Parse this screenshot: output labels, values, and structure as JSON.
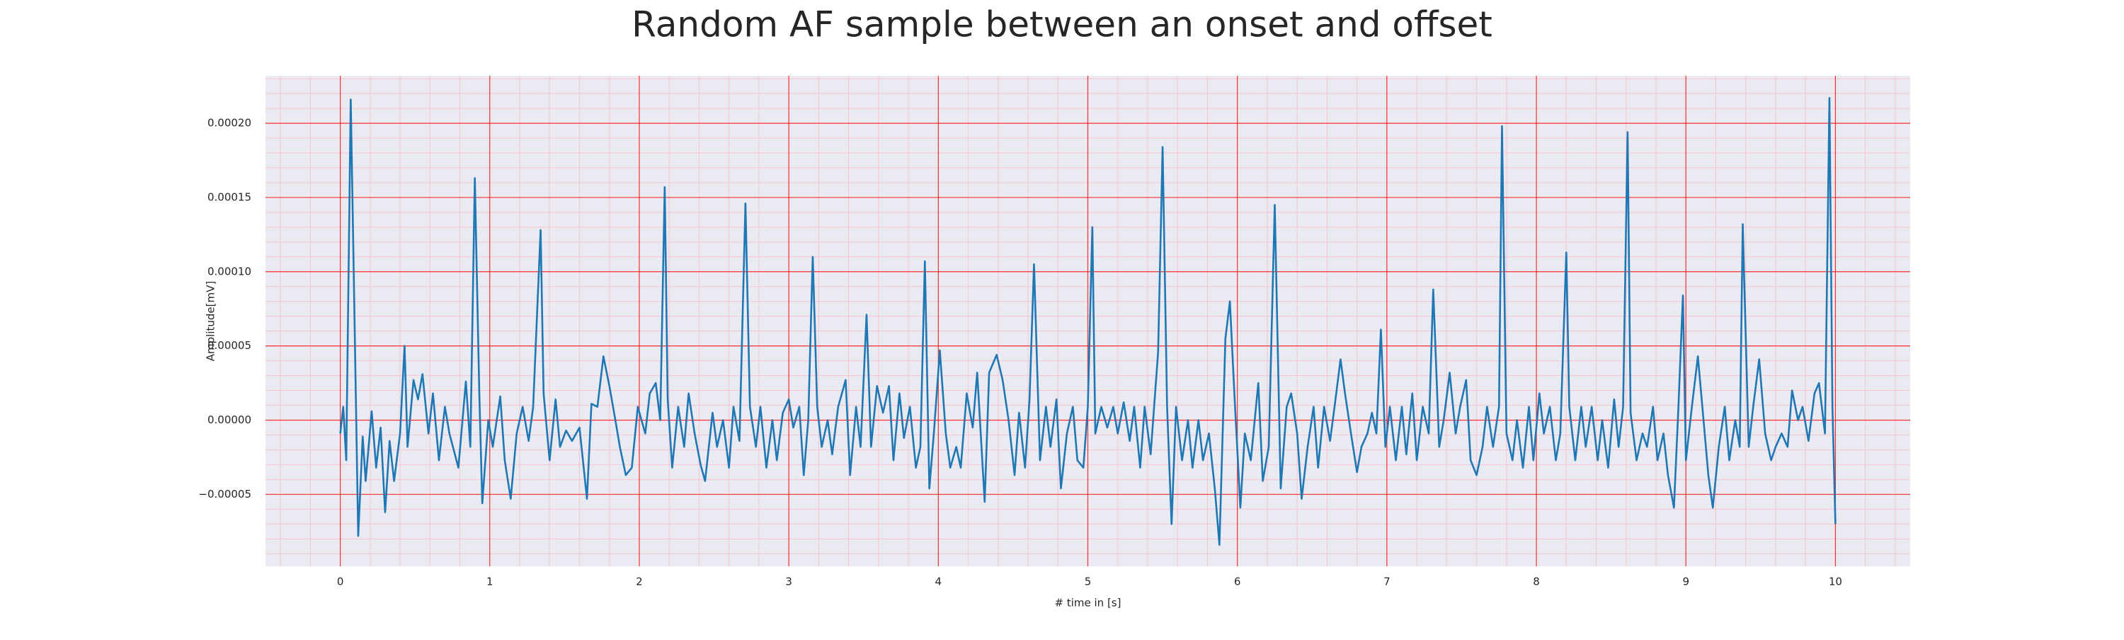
{
  "chart_data": {
    "type": "line",
    "title": "Random AF sample between an onset and offset",
    "xlabel": "# time in [s]",
    "ylabel": "Amplitude[mV]",
    "x": [
      0,
      0.02,
      0.04,
      0.07,
      0.09,
      0.12,
      0.15,
      0.17,
      0.21,
      0.24,
      0.27,
      0.3,
      0.33,
      0.36,
      0.4,
      0.43,
      0.45,
      0.49,
      0.52,
      0.55,
      0.59,
      0.62,
      0.66,
      0.7,
      0.73,
      0.79,
      0.84,
      0.87,
      0.9,
      0.93,
      0.95,
      0.99,
      1.02,
      1.07,
      1.1,
      1.14,
      1.18,
      1.22,
      1.26,
      1.29,
      1.34,
      1.36,
      1.4,
      1.44,
      1.47,
      1.51,
      1.55,
      1.6,
      1.65,
      1.68,
      1.72,
      1.76,
      1.8,
      1.84,
      1.87,
      1.91,
      1.95,
      1.99,
      2.04,
      2.07,
      2.11,
      2.14,
      2.17,
      2.19,
      2.22,
      2.26,
      2.3,
      2.33,
      2.37,
      2.41,
      2.44,
      2.49,
      2.52,
      2.56,
      2.6,
      2.63,
      2.67,
      2.71,
      2.74,
      2.78,
      2.81,
      2.85,
      2.89,
      2.92,
      2.96,
      3.0,
      3.03,
      3.07,
      3.1,
      3.13,
      3.16,
      3.19,
      3.22,
      3.26,
      3.29,
      3.33,
      3.38,
      3.41,
      3.45,
      3.48,
      3.52,
      3.55,
      3.59,
      3.63,
      3.67,
      3.7,
      3.74,
      3.77,
      3.81,
      3.85,
      3.88,
      3.91,
      3.94,
      3.97,
      4.01,
      4.05,
      4.08,
      4.12,
      4.15,
      4.19,
      4.23,
      4.26,
      4.31,
      4.34,
      4.39,
      4.43,
      4.47,
      4.51,
      4.54,
      4.58,
      4.61,
      4.64,
      4.68,
      4.72,
      4.75,
      4.79,
      4.82,
      4.86,
      4.9,
      4.93,
      4.97,
      5.0,
      5.03,
      5.05,
      5.09,
      5.13,
      5.17,
      5.2,
      5.24,
      5.28,
      5.31,
      5.35,
      5.38,
      5.42,
      5.47,
      5.5,
      5.53,
      5.56,
      5.59,
      5.63,
      5.67,
      5.7,
      5.74,
      5.77,
      5.81,
      5.85,
      5.88,
      5.92,
      5.95,
      5.98,
      6.02,
      6.05,
      6.09,
      6.14,
      6.17,
      6.21,
      6.25,
      6.29,
      6.33,
      6.36,
      6.4,
      6.43,
      6.47,
      6.51,
      6.54,
      6.58,
      6.62,
      6.65,
      6.69,
      6.72,
      6.76,
      6.8,
      6.83,
      6.87,
      6.9,
      6.93,
      6.96,
      6.99,
      7.02,
      7.06,
      7.1,
      7.13,
      7.17,
      7.2,
      7.24,
      7.28,
      7.31,
      7.35,
      7.38,
      7.42,
      7.46,
      7.49,
      7.53,
      7.56,
      7.6,
      7.64,
      7.67,
      7.71,
      7.75,
      7.77,
      7.8,
      7.84,
      7.87,
      7.91,
      7.95,
      7.98,
      8.02,
      8.05,
      8.09,
      8.13,
      8.16,
      8.2,
      8.22,
      8.26,
      8.3,
      8.33,
      8.37,
      8.41,
      8.44,
      8.48,
      8.52,
      8.55,
      8.58,
      8.61,
      8.63,
      8.67,
      8.71,
      8.74,
      8.78,
      8.81,
      8.85,
      8.88,
      8.92,
      8.95,
      8.98,
      9.0,
      9.04,
      9.08,
      9.11,
      9.15,
      9.18,
      9.22,
      9.26,
      9.29,
      9.33,
      9.36,
      9.38,
      9.42,
      9.45,
      9.49,
      9.53,
      9.57,
      9.6,
      9.64,
      9.68,
      9.71,
      9.75,
      9.78,
      9.82,
      9.86,
      9.89,
      9.93,
      9.96,
      9.98,
      10.0
    ],
    "series": [
      {
        "color": "#1f77b4",
        "values": [
          -9e-06,
          9e-06,
          -2.7e-05,
          0.000216,
          0.0001,
          -7.8e-05,
          -1.1e-05,
          -4.1e-05,
          6e-06,
          -3.2e-05,
          -5e-06,
          -6.2e-05,
          -1.4e-05,
          -4.1e-05,
          -9e-06,
          5e-05,
          -1.8e-05,
          2.7e-05,
          1.4e-05,
          3.1e-05,
          -9e-06,
          1.8e-05,
          -2.7e-05,
          9e-06,
          -9e-06,
          -3.2e-05,
          2.6e-05,
          -1.8e-05,
          0.000163,
          1.8e-05,
          -5.6e-05,
          0,
          -1.8e-05,
          1.6e-05,
          -2.7e-05,
          -5.3e-05,
          -9e-06,
          9e-06,
          -1.4e-05,
          9e-06,
          0.000128,
          1.8e-05,
          -2.7e-05,
          1.4e-05,
          -1.8e-05,
          -7e-06,
          -1.4e-05,
          -5e-06,
          -5.3e-05,
          1.1e-05,
          9e-06,
          4.3e-05,
          2.3e-05,
          0,
          -1.8e-05,
          -3.7e-05,
          -3.2e-05,
          9e-06,
          -9e-06,
          1.8e-05,
          2.5e-05,
          0,
          0.000157,
          1.4e-05,
          -3.2e-05,
          9e-06,
          -1.8e-05,
          1.8e-05,
          -9e-06,
          -3e-05,
          -4.1e-05,
          5e-06,
          -1.8e-05,
          0,
          -3.2e-05,
          9e-06,
          -1.4e-05,
          0.000146,
          9e-06,
          -1.8e-05,
          9e-06,
          -3.2e-05,
          0,
          -2.7e-05,
          5e-06,
          1.4e-05,
          -5e-06,
          9e-06,
          -3.7e-05,
          0,
          0.00011,
          9e-06,
          -1.8e-05,
          0,
          -2.3e-05,
          9e-06,
          2.7e-05,
          -3.7e-05,
          9e-06,
          -1.8e-05,
          7.1e-05,
          -1.8e-05,
          2.3e-05,
          5e-06,
          2.3e-05,
          -2.7e-05,
          1.8e-05,
          -1.2e-05,
          9e-06,
          -3.2e-05,
          -1.8e-05,
          0.000107,
          -4.6e-05,
          -9e-06,
          4.7e-05,
          -9e-06,
          -3.2e-05,
          -1.8e-05,
          -3.2e-05,
          1.8e-05,
          -5e-06,
          3.2e-05,
          -5.5e-05,
          3.2e-05,
          4.4e-05,
          2.7e-05,
          0,
          -3.7e-05,
          5e-06,
          -3.2e-05,
          1.4e-05,
          0.000105,
          -2.7e-05,
          9e-06,
          -1.8e-05,
          1.4e-05,
          -4.6e-05,
          -9e-06,
          9e-06,
          -2.7e-05,
          -3.2e-05,
          9e-06,
          0.00013,
          -9e-06,
          9e-06,
          -5e-06,
          9e-06,
          -9e-06,
          1.2e-05,
          -1.4e-05,
          9e-06,
          -3.2e-05,
          9e-06,
          -2.3e-05,
          4.6e-05,
          0.000184,
          9e-06,
          -7e-05,
          9e-06,
          -2.7e-05,
          0,
          -3.2e-05,
          0,
          -2.7e-05,
          -9e-06,
          -4.7e-05,
          -8.4e-05,
          5.5e-05,
          8e-05,
          1.8e-05,
          -5.9e-05,
          -9e-06,
          -2.7e-05,
          2.5e-05,
          -4.1e-05,
          -1.8e-05,
          0.000145,
          -4.6e-05,
          9e-06,
          1.8e-05,
          -9e-06,
          -5.3e-05,
          -1.8e-05,
          9e-06,
          -3.2e-05,
          9e-06,
          -1.4e-05,
          9e-06,
          4.1e-05,
          1.8e-05,
          -9e-06,
          -3.5e-05,
          -1.8e-05,
          -9e-06,
          5e-06,
          -9e-06,
          6.1e-05,
          -1.8e-05,
          9e-06,
          -2.7e-05,
          9e-06,
          -2.3e-05,
          1.8e-05,
          -2.7e-05,
          9e-06,
          -9e-06,
          8.8e-05,
          -1.8e-05,
          0,
          3.2e-05,
          -9e-06,
          9e-06,
          2.7e-05,
          -2.7e-05,
          -3.7e-05,
          -1.8e-05,
          9e-06,
          -1.8e-05,
          9e-06,
          0.000198,
          -9e-06,
          -2.7e-05,
          0,
          -3.2e-05,
          9e-06,
          -2.7e-05,
          1.8e-05,
          -9e-06,
          9e-06,
          -2.7e-05,
          -9e-06,
          0.000113,
          9e-06,
          -2.7e-05,
          9e-06,
          -1.8e-05,
          9e-06,
          -2.7e-05,
          0,
          -3.2e-05,
          1.4e-05,
          -1.8e-05,
          9e-06,
          0.000194,
          5e-06,
          -2.7e-05,
          -9e-06,
          -1.8e-05,
          9e-06,
          -2.7e-05,
          -9e-06,
          -3.7e-05,
          -5.9e-05,
          9e-06,
          8.4e-05,
          -2.7e-05,
          9e-06,
          4.3e-05,
          9e-06,
          -3.7e-05,
          -5.9e-05,
          -1.8e-05,
          9e-06,
          -2.7e-05,
          0,
          -1.8e-05,
          0.000132,
          -1.8e-05,
          9e-06,
          4.1e-05,
          -9e-06,
          -2.7e-05,
          -1.8e-05,
          -9e-06,
          -1.8e-05,
          2e-05,
          0,
          9e-06,
          -1.4e-05,
          1.8e-05,
          2.5e-05,
          -9e-06,
          0.000217,
          9e-06,
          -7e-05
        ]
      }
    ],
    "xlim": [
      -0.5,
      10.5
    ],
    "ylim": [
      -9.85e-05,
      0.000232
    ],
    "xticks": [
      0,
      1,
      2,
      3,
      4,
      5,
      6,
      7,
      8,
      9,
      10
    ],
    "yticks": [
      {
        "value": -5e-05,
        "label": "−0.00005"
      },
      {
        "value": 0,
        "label": "0.00000"
      },
      {
        "value": 5e-05,
        "label": "0.00005"
      },
      {
        "value": 0.0001,
        "label": "0.00010"
      },
      {
        "value": 0.00015,
        "label": "0.00015"
      },
      {
        "value": 0.0002,
        "label": "0.00020"
      }
    ],
    "grid": true,
    "grid_color": "#ff0000",
    "minor_grid_color": "#ffb6c1",
    "minor_divisions": 5,
    "background": "#eaeaf2"
  }
}
